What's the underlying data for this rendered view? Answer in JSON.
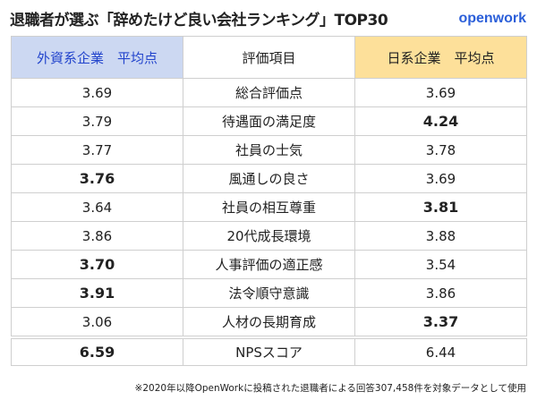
{
  "title": "退職者が選ぶ「辞めたけど良い会社ランキング」TOP30",
  "logo": "openwork",
  "headers": {
    "left": "外資系企業　平均点",
    "middle": "評価項目",
    "right": "日系企業　平均点"
  },
  "colors": {
    "left_header": "#ccd8f2",
    "right_header": "#fde09a",
    "left_header_text": "#2244cc",
    "logo": "#2b5fd9"
  },
  "rows": [
    {
      "left": "3.69",
      "item": "総合評価点",
      "right": "3.69",
      "bold": "none"
    },
    {
      "left": "3.79",
      "item": "待遇面の満足度",
      "right": "4.24",
      "bold": "right"
    },
    {
      "left": "3.77",
      "item": "社員の士気",
      "right": "3.78",
      "bold": "none"
    },
    {
      "left": "3.76",
      "item": "風通しの良さ",
      "right": "3.69",
      "bold": "left"
    },
    {
      "left": "3.64",
      "item": "社員の相互尊重",
      "right": "3.81",
      "bold": "right"
    },
    {
      "left": "3.86",
      "item": "20代成長環境",
      "right": "3.88",
      "bold": "none"
    },
    {
      "left": "3.70",
      "item": "人事評価の適正感",
      "right": "3.54",
      "bold": "left"
    },
    {
      "left": "3.91",
      "item": "法令順守意識",
      "right": "3.86",
      "bold": "left"
    },
    {
      "left": "3.06",
      "item": "人材の長期育成",
      "right": "3.37",
      "bold": "right"
    },
    {
      "left": "6.59",
      "item": "NPSスコア",
      "right": "6.44",
      "bold": "left"
    }
  ],
  "footnote": "※2020年以降OpenWorkに投稿された退職者による回答307,458件を対象データとして使用"
}
